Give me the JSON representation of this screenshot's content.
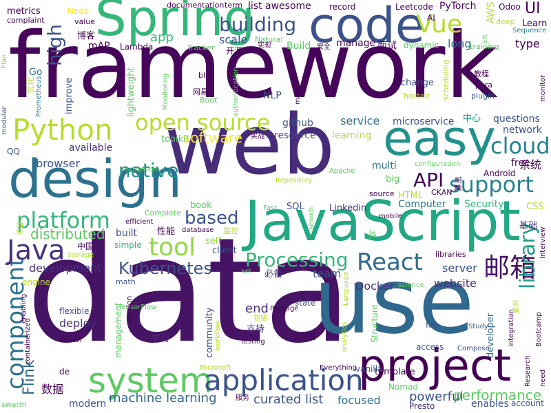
{
  "words": [
    {
      "text": "framework",
      "color": "#46065a",
      "vertical": false
    },
    {
      "text": "data",
      "color": "#471365",
      "vertical": false
    },
    {
      "text": "web",
      "color": "#472c7a",
      "vertical": false
    },
    {
      "text": "use",
      "color": "#31688e",
      "vertical": false
    },
    {
      "text": "JavaScript",
      "color": "#22a884",
      "vertical": false
    },
    {
      "text": "code",
      "color": "#3b528b",
      "vertical": false
    },
    {
      "text": "Spring",
      "color": "#35b779",
      "vertical": false
    },
    {
      "text": "design",
      "color": "#2c728e",
      "vertical": false
    },
    {
      "text": "easy",
      "color": "#21918c",
      "vertical": false
    },
    {
      "text": "project",
      "color": "#440154",
      "vertical": false
    },
    {
      "text": "system",
      "color": "#5ec962",
      "vertical": false
    },
    {
      "text": "application",
      "color": "#3b528b",
      "vertical": false
    },
    {
      "text": "Python",
      "color": "#b5de2b",
      "vertical": false
    },
    {
      "text": "React",
      "color": "#31688e",
      "vertical": false
    },
    {
      "text": "open source",
      "color": "#b5de2b",
      "vertical": false
    },
    {
      "text": "component",
      "color": "#2c728e",
      "vertical": true
    },
    {
      "text": "Java",
      "color": "#46327e",
      "vertical": false
    },
    {
      "text": "tool",
      "color": "#90d743",
      "vertical": false
    },
    {
      "text": "邮箱",
      "color": "#471365",
      "vertical": false
    },
    {
      "text": "library",
      "color": "#1f9e89",
      "vertical": true
    },
    {
      "text": "cloud",
      "color": "#26828e",
      "vertical": false
    },
    {
      "text": "support",
      "color": "#26828e",
      "vertical": false
    },
    {
      "text": "platform",
      "color": "#35b779",
      "vertical": false
    },
    {
      "text": "Vue",
      "color": "#b5de2b",
      "vertical": false
    },
    {
      "text": "Processing",
      "color": "#35b779",
      "vertical": false
    },
    {
      "text": "Kubernetes",
      "color": "#3b528b",
      "vertical": false
    },
    {
      "text": "native",
      "color": "#21918c",
      "vertical": false
    },
    {
      "text": "building",
      "color": "#3b528b",
      "vertical": false
    },
    {
      "text": "API",
      "color": "#440154",
      "vertical": false
    },
    {
      "text": "based",
      "color": "#3b528b",
      "vertical": false
    },
    {
      "text": "high",
      "color": "#3b528b",
      "vertical": true
    },
    {
      "text": "distributed",
      "color": "#5ec962",
      "vertical": false
    },
    {
      "text": "software",
      "color": "#fde725",
      "vertical": false
    },
    {
      "text": "performance",
      "color": "#5ec962",
      "vertical": false
    },
    {
      "text": "Flink",
      "color": "#31688e",
      "vertical": true
    },
    {
      "text": "machine learning",
      "color": "#31688e",
      "vertical": false
    },
    {
      "text": "curated list",
      "color": "#3b528b",
      "vertical": false
    },
    {
      "text": "development",
      "color": "#46327e",
      "vertical": false
    },
    {
      "text": "deploy",
      "color": "#46327e",
      "vertical": false
    },
    {
      "text": "end",
      "color": "#46327e",
      "vertical": false
    },
    {
      "text": "powerful",
      "color": "#3b528b",
      "vertical": false
    },
    {
      "text": "focused",
      "color": "#2c728e",
      "vertical": false
    },
    {
      "text": "website",
      "color": "#472c7a",
      "vertical": false
    },
    {
      "text": "server",
      "color": "#3b528b",
      "vertical": false
    },
    {
      "text": "team",
      "color": "#3b528b",
      "vertical": false
    },
    {
      "text": "Docker",
      "color": "#46327e",
      "vertical": false
    },
    {
      "text": "browser",
      "color": "#3b528b",
      "vertical": false
    },
    {
      "text": "service",
      "color": "#2c728e",
      "vertical": false
    },
    {
      "text": "microservice",
      "color": "#3b528b",
      "vertical": false
    },
    {
      "text": "questions",
      "color": "#3b528b",
      "vertical": false
    },
    {
      "text": "network",
      "color": "#3b528b",
      "vertical": false
    },
    {
      "text": "free",
      "color": "#440154",
      "vertical": false
    },
    {
      "text": "系统",
      "color": "#440154",
      "vertical": false
    },
    {
      "text": "multi",
      "color": "#2c728e",
      "vertical": false
    },
    {
      "text": "resource",
      "color": "#3b528b",
      "vertical": false
    },
    {
      "text": "github",
      "color": "#3b528b",
      "vertical": false
    },
    {
      "text": "learning",
      "color": "#b5de2b",
      "vertical": false
    },
    {
      "text": "Security",
      "color": "#35b779",
      "vertical": false
    },
    {
      "text": "Computer",
      "color": "#2c728e",
      "vertical": false
    },
    {
      "text": "HTML",
      "color": "#b5de2b",
      "vertical": false
    },
    {
      "text": "SQL",
      "color": "#3b528b",
      "vertical": false
    },
    {
      "text": "Linkedin",
      "color": "#46327e",
      "vertical": false
    },
    {
      "text": "CSS",
      "color": "#b5de2b",
      "vertical": false
    },
    {
      "text": "基础",
      "color": "#46327e",
      "vertical": false
    },
    {
      "text": "available",
      "color": "#472c7a",
      "vertical": false
    },
    {
      "text": "built",
      "color": "#3b528b",
      "vertical": false
    },
    {
      "text": "simple",
      "color": "#35b779",
      "vertical": false
    },
    {
      "text": "client",
      "color": "#3b528b",
      "vertical": false
    },
    {
      "text": "self",
      "color": "#90d743",
      "vertical": false
    },
    {
      "text": "community",
      "color": "#3b528b",
      "vertical": true
    },
    {
      "text": "management",
      "color": "#5ec962",
      "vertical": true
    },
    {
      "text": "developer",
      "color": "#31688e",
      "vertical": true
    },
    {
      "text": "Structure",
      "color": "#5ec962",
      "vertical": true
    },
    {
      "text": "数据",
      "color": "#440154",
      "vertical": false
    },
    {
      "text": "modern",
      "color": "#3b528b",
      "vertical": false
    },
    {
      "text": "Nomad",
      "color": "#5ec962",
      "vertical": false
    },
    {
      "text": "enables",
      "color": "#3b528b",
      "vertical": false
    },
    {
      "text": "account",
      "color": "#3b528b",
      "vertical": false
    },
    {
      "text": "Presto",
      "color": "#46327e",
      "vertical": false
    },
    {
      "text": "必备",
      "color": "#46327e",
      "vertical": false
    },
    {
      "text": "学习",
      "color": "#46327e",
      "vertical": false
    },
    {
      "text": "支持",
      "color": "#46327e",
      "vertical": false
    },
    {
      "text": "state",
      "color": "#3b528b",
      "vertical": false
    },
    {
      "text": "access",
      "color": "#3b528b",
      "vertical": false
    },
    {
      "text": "vanilla",
      "color": "#3b528b",
      "vertical": false
    },
    {
      "text": "file",
      "color": "#3b528b",
      "vertical": false
    },
    {
      "text": "Study",
      "color": "#3b528b",
      "vertical": false
    },
    {
      "text": "Compose",
      "color": "#3b528b",
      "vertical": false
    },
    {
      "text": "flexible",
      "color": "#3b528b",
      "vertical": false
    },
    {
      "text": "math",
      "color": "#3b528b",
      "vertical": false
    },
    {
      "text": "metrics",
      "color": "#440154",
      "vertical": false
    },
    {
      "text": "complaint",
      "color": "#440154",
      "vertical": false
    },
    {
      "text": "Node",
      "color": "#fde725",
      "vertical": false
    },
    {
      "text": "documentation",
      "color": "#440154",
      "vertical": false
    },
    {
      "text": "term",
      "color": "#440154",
      "vertical": false
    },
    {
      "text": "list awesome",
      "color": "#440154",
      "vertical": false
    },
    {
      "text": "record",
      "color": "#440154",
      "vertical": false
    },
    {
      "text": "Leetcode",
      "color": "#440154",
      "vertical": false
    },
    {
      "text": "PyTorch",
      "color": "#440154",
      "vertical": false
    },
    {
      "text": "AWS",
      "color": "#b5de2b",
      "vertical": true
    },
    {
      "text": "Odoo",
      "color": "#440154",
      "vertical": false
    },
    {
      "text": "UI",
      "color": "#440154",
      "vertical": false
    },
    {
      "text": "Learn",
      "color": "#440154",
      "vertical": false
    },
    {
      "text": "value",
      "color": "#440154",
      "vertical": false
    },
    {
      "text": "博客",
      "color": "#440154",
      "vertical": false
    },
    {
      "text": "mAP",
      "color": "#440154",
      "vertical": false
    },
    {
      "text": "Lambda",
      "color": "#440154",
      "vertical": false
    },
    {
      "text": "app",
      "color": "#35b779",
      "vertical": false
    },
    {
      "text": "Tracker",
      "color": "#5ec962",
      "vertical": false
    },
    {
      "text": "开源",
      "color": "#440154",
      "vertical": false
    },
    {
      "text": "Natural",
      "color": "#5ec962",
      "vertical": false
    },
    {
      "text": "Build",
      "color": "#5ec962",
      "vertical": false
    },
    {
      "text": "manage",
      "color": "#440154",
      "vertical": false
    },
    {
      "text": "面试",
      "color": "#440154",
      "vertical": false
    },
    {
      "text": "dynamic",
      "color": "#5ec962",
      "vertical": false
    },
    {
      "text": "long",
      "color": "#2c728e",
      "vertical": false
    },
    {
      "text": "type",
      "color": "#440154",
      "vertical": false
    },
    {
      "text": "training",
      "color": "#5ec962",
      "vertical": false
    },
    {
      "text": "deep",
      "color": "#b5de2b",
      "vertical": false
    },
    {
      "text": "Sequence",
      "color": "#26828e",
      "vertical": false
    },
    {
      "text": "scale",
      "color": "#3b528b",
      "vertical": false
    },
    {
      "text": "blog",
      "color": "#440154",
      "vertical": false
    },
    {
      "text": "Boot",
      "color": "#5ec962",
      "vertical": false
    },
    {
      "text": "网易",
      "color": "#440154",
      "vertical": false
    },
    {
      "text": "NLP",
      "color": "#3b528b",
      "vertical": false
    },
    {
      "text": "makes",
      "color": "#440154",
      "vertical": true
    },
    {
      "text": "change",
      "color": "#3b528b",
      "vertical": false
    },
    {
      "text": "hosted",
      "color": "#b5de2b",
      "vertical": false
    },
    {
      "text": "plugin",
      "color": "#3b528b",
      "vertical": false
    },
    {
      "text": "para",
      "color": "#440154",
      "vertical": false
    },
    {
      "text": "教程",
      "color": "#440154",
      "vertical": false
    },
    {
      "text": "monitor",
      "color": "#440154",
      "vertical": true
    },
    {
      "text": "中心",
      "color": "#1f9e89",
      "vertical": false
    },
    {
      "text": "scheduling",
      "color": "#b5de2b",
      "vertical": true
    },
    {
      "text": "authentication",
      "color": "#5ec962",
      "vertical": true
    },
    {
      "text": "Monitoring",
      "color": "#5ec962",
      "vertical": true
    },
    {
      "text": "lightweight",
      "color": "#5ec962",
      "vertical": true
    },
    {
      "text": "improve",
      "color": "#3b528b",
      "vertical": true
    },
    {
      "text": "Prometheus",
      "color": "#2c728e",
      "vertical": true
    },
    {
      "text": "优化",
      "color": "#b5de2b",
      "vertical": true
    },
    {
      "text": "Go",
      "color": "#2c728e",
      "vertical": false
    },
    {
      "text": "Plan",
      "color": "#90d743",
      "vertical": true
    },
    {
      "text": "modular",
      "color": "#3b528b",
      "vertical": true
    },
    {
      "text": "QQ",
      "color": "#3b528b",
      "vertical": false
    },
    {
      "text": "toolkit",
      "color": "#5ec962",
      "vertical": false
    },
    {
      "text": "extension",
      "color": "#5ec962",
      "vertical": false
    },
    {
      "text": "Apache",
      "color": "#5ec962",
      "vertical": false
    },
    {
      "text": "configuration",
      "color": "#5ec962",
      "vertical": false
    },
    {
      "text": "Android",
      "color": "#440154",
      "vertical": false
    },
    {
      "text": "Repository",
      "color": "#b5de2b",
      "vertical": false
    },
    {
      "text": "big",
      "color": "#5ec962",
      "vertical": false
    },
    {
      "text": "source",
      "color": "#440154",
      "vertical": false
    },
    {
      "text": "CKAN",
      "color": "#440154",
      "vertical": false
    },
    {
      "text": "算法",
      "color": "#440154",
      "vertical": true
    },
    {
      "text": "Fast",
      "color": "#5ec962",
      "vertical": false
    },
    {
      "text": "search",
      "color": "#5ec962",
      "vertical": true
    },
    {
      "text": "mobile",
      "color": "#440154",
      "vertical": false
    },
    {
      "text": "Complete",
      "color": "#5ec962",
      "vertical": false
    },
    {
      "text": "book",
      "color": "#5ec962",
      "vertical": false
    },
    {
      "text": "efficient",
      "color": "#440154",
      "vertical": false
    },
    {
      "text": "性能",
      "color": "#440154",
      "vertical": false
    },
    {
      "text": "database",
      "color": "#440154",
      "vertical": false
    },
    {
      "text": "监控",
      "color": "#b5de2b",
      "vertical": false
    },
    {
      "text": "js",
      "color": "#5ec962",
      "vertical": false
    },
    {
      "text": "中国",
      "color": "#440154",
      "vertical": false
    },
    {
      "text": "项目",
      "color": "#b5de2b",
      "vertical": true
    },
    {
      "text": "storage",
      "color": "#b5de2b",
      "vertical": false
    },
    {
      "text": "libraries",
      "color": "#440154",
      "vertical": false
    },
    {
      "text": "Interview",
      "color": "#440154",
      "vertical": true
    },
    {
      "text": "engine",
      "color": "#b5de2b",
      "vertical": false
    },
    {
      "text": "set",
      "color": "#5ec962",
      "vertical": false
    },
    {
      "text": "science",
      "color": "#5ec962",
      "vertical": false
    },
    {
      "text": "Language",
      "color": "#b5de2b",
      "vertical": true
    },
    {
      "text": "enabling",
      "color": "#440154",
      "vertical": true
    },
    {
      "text": "containerized",
      "color": "#440154",
      "vertical": true
    },
    {
      "text": "TensorFlow",
      "color": "#5ec962",
      "vertical": false
    },
    {
      "text": "version",
      "color": "#440154",
      "vertical": true
    },
    {
      "text": "包括",
      "color": "#b5de2b",
      "vertical": false
    },
    {
      "text": "Package",
      "color": "#440154",
      "vertical": false
    },
    {
      "text": "testing",
      "color": "#440154",
      "vertical": false
    },
    {
      "text": "浏览器",
      "color": "#440154",
      "vertical": false
    },
    {
      "text": "analytics",
      "color": "#b5de2b",
      "vertical": true
    },
    {
      "text": "integration",
      "color": "#440154",
      "vertical": true
    },
    {
      "text": "案例",
      "color": "#b5de2b",
      "vertical": true
    },
    {
      "text": "Bootcamp",
      "color": "#440154",
      "vertical": true
    },
    {
      "text": "driven",
      "color": "#440154",
      "vertical": false
    },
    {
      "text": "workflow",
      "color": "#b5de2b",
      "vertical": true
    },
    {
      "text": "Everything",
      "color": "#440154",
      "vertical": false
    },
    {
      "text": "Microsoft",
      "color": "#b5de2b",
      "vertical": false
    },
    {
      "text": "de",
      "color": "#440154",
      "vertical": false
    },
    {
      "text": "服务",
      "color": "#440154",
      "vertical": false
    },
    {
      "text": "template",
      "color": "#440154",
      "vertical": false
    },
    {
      "text": "swarm",
      "color": "#5ec962",
      "vertical": false
    },
    {
      "text": "Research",
      "color": "#440154",
      "vertical": true
    },
    {
      "text": "need",
      "color": "#440154",
      "vertical": true
    },
    {
      "text": "安全",
      "color": "#440154",
      "vertical": false
    },
    {
      "text": "实现",
      "color": "#440154",
      "vertical": false
    },
    {
      "text": "实战",
      "color": "#440154",
      "vertical": false
    },
    {
      "text": "art",
      "color": "#5ec962",
      "vertical": true
    },
    {
      "text": "AI",
      "color": "#440154",
      "vertical": false
    }
  ]
}
